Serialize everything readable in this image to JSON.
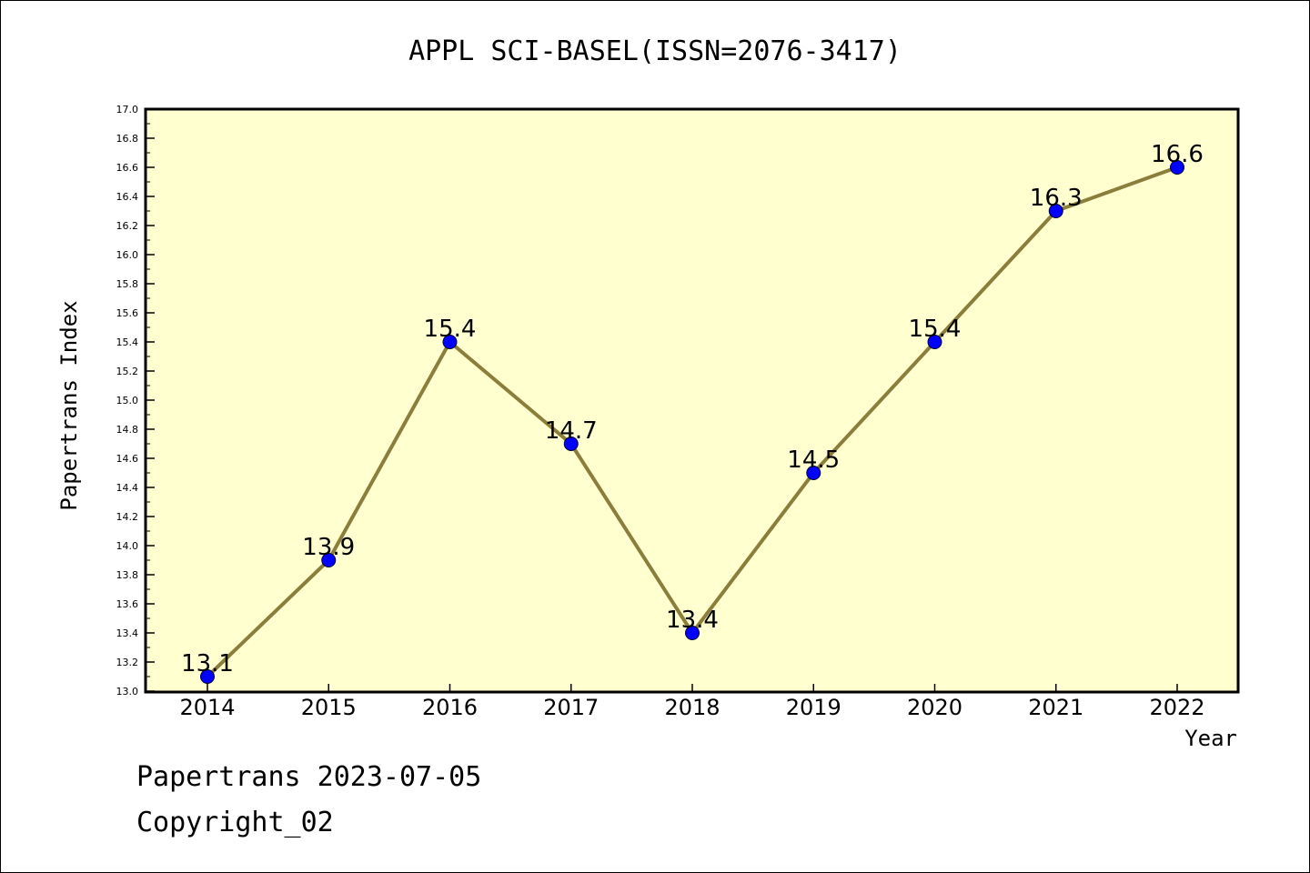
{
  "chart_data": {
    "type": "line",
    "title": "APPL SCI-BASEL(ISSN=2076-3417)",
    "xlabel": "Year",
    "ylabel": "Papertrans Index",
    "categories": [
      "2014",
      "2015",
      "2016",
      "2017",
      "2018",
      "2019",
      "2020",
      "2021",
      "2022"
    ],
    "values": [
      13.1,
      13.9,
      15.4,
      14.7,
      13.4,
      14.5,
      15.4,
      16.3,
      16.6
    ],
    "data_labels": [
      "13.1",
      "13.9",
      "15.4",
      "14.7",
      "13.4",
      "14.5",
      "15.4",
      "16.3",
      "16.6"
    ],
    "ylim": [
      13.0,
      17.0
    ],
    "yticks": [
      "13.0",
      "13.2",
      "13.4",
      "13.6",
      "13.8",
      "14.0",
      "14.2",
      "14.4",
      "14.6",
      "14.8",
      "15.0",
      "15.2",
      "15.4",
      "15.6",
      "15.8",
      "16.0",
      "16.2",
      "16.4",
      "16.6",
      "16.8",
      "17.0"
    ],
    "grid": false,
    "colors": {
      "plot_background": "#ffffd0",
      "line": "#8b7d3a",
      "marker": "#0000ff"
    }
  },
  "footer": {
    "line1": "Papertrans 2023-07-05",
    "line2": "Copyright_02"
  }
}
